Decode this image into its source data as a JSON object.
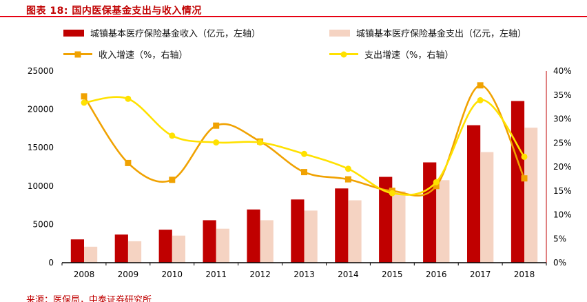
{
  "header": {
    "title": "图表 18: 国内医保基金支出与收入情况"
  },
  "legend": {
    "items": [
      {
        "label": "城镇基本医疗保险基金收入（亿元，左轴）",
        "type": "bar",
        "color": "#c00000"
      },
      {
        "label": "城镇基本医疗保险基金支出（亿元，左轴）",
        "type": "bar",
        "color": "#f5d3c2"
      },
      {
        "label": "收入增速（%，右轴）",
        "type": "line",
        "marker": "square",
        "color": "#f0a202"
      },
      {
        "label": "支出增速（%，右轴）",
        "type": "line",
        "marker": "circle",
        "color": "#ffe100"
      }
    ]
  },
  "chart_data": {
    "type": "bar+line",
    "title": "国内医保基金支出与收入情况",
    "categories": [
      "2008",
      "2009",
      "2010",
      "2011",
      "2012",
      "2013",
      "2014",
      "2015",
      "2016",
      "2017",
      "2018"
    ],
    "series_bars": [
      {
        "name": "城镇基本医疗保险基金收入（亿元）",
        "axis": "left",
        "color": "#c00000",
        "values": [
          3040,
          3672,
          4309,
          5539,
          6939,
          8248,
          9687,
          11193,
          13084,
          17932,
          21090
        ]
      },
      {
        "name": "城镇基本医疗保险基金支出（亿元）",
        "axis": "left",
        "color": "#f5d3c2",
        "values": [
          2084,
          2797,
          3538,
          4431,
          5544,
          6801,
          8134,
          9312,
          10767,
          14422,
          17607
        ]
      }
    ],
    "series_lines": [
      {
        "name": "收入增速（%）",
        "axis": "right",
        "color": "#f0a202",
        "marker": "square",
        "values": [
          34.7,
          20.8,
          17.3,
          28.6,
          25.3,
          18.9,
          17.4,
          15.0,
          16.0,
          37.0,
          17.6
        ]
      },
      {
        "name": "支出增速（%）",
        "axis": "right",
        "color": "#ffe100",
        "marker": "circle",
        "values": [
          33.4,
          34.2,
          26.5,
          25.1,
          25.1,
          22.7,
          19.6,
          14.5,
          16.8,
          33.9,
          22.1
        ]
      }
    ],
    "left_axis": {
      "min": 0,
      "max": 25000,
      "ticks": [
        0,
        5000,
        10000,
        15000,
        20000,
        25000
      ]
    },
    "right_axis": {
      "min": 0,
      "max": 40,
      "ticks": [
        0,
        5,
        10,
        15,
        20,
        25,
        30,
        35,
        40
      ],
      "suffix": "%"
    },
    "grid": false,
    "legend_position": "top"
  },
  "footer": {
    "source": "来源：医保局，中泰证券研究所"
  },
  "colors": {
    "title": "#c00000",
    "rule": "#e60012",
    "source": "#c00000",
    "axis": "#000000",
    "right_spine": "#c00000"
  }
}
